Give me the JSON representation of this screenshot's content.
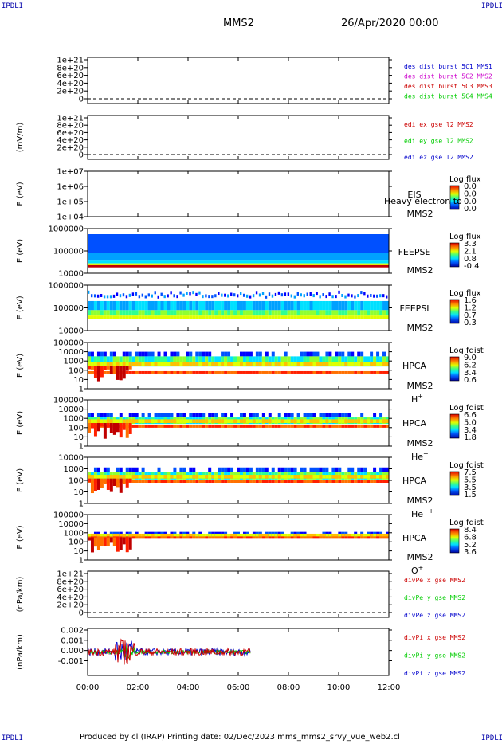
{
  "header": {
    "title": "MMS2",
    "date": "26/Apr/2020 00:00",
    "corner_left_top": "IPDLI",
    "corner_right_top": "IPDLI",
    "corner_left_bottom": "IPDLI",
    "corner_right_bottom": "IPDLI"
  },
  "footer": {
    "text": "Produced by cl (IRAP)    Printing date: 02/Dec/2023    mms_mms2_srvy_vue_web2.cl"
  },
  "colors": {
    "mms1": "#0000cc",
    "mms2": "#cc00cc",
    "mms3": "#cc0000",
    "mms4": "#00cc00",
    "x_comp": "#cc0000",
    "y_comp": "#00cc00",
    "z_comp": "#0000cc"
  },
  "chart_data": {
    "type": "stacked-timeseries",
    "x_tick_labels": [
      "00:00",
      "02:00",
      "04:00",
      "06:00",
      "08:00",
      "10:00",
      "12:00"
    ],
    "x_range_hours": [
      0,
      12
    ],
    "panels": [
      {
        "id": "des-dist",
        "type": "line",
        "ylabel": "",
        "y_ticks": [
          "1e+21",
          "8e+20",
          "6e+20",
          "4e+20",
          "2e+20",
          "0"
        ],
        "legend": [
          {
            "label": "des dist burst 5C1 MMS1",
            "color": "#0000cc"
          },
          {
            "label": "des dist burst 5C2 MMS2",
            "color": "#cc00cc"
          },
          {
            "label": "des dist burst 5C3 MMS3",
            "color": "#cc0000"
          },
          {
            "label": "des dist burst 5C4 MMS4",
            "color": "#00cc00"
          }
        ]
      },
      {
        "id": "edi",
        "type": "line",
        "ylabel": "(mV/m)",
        "y_ticks": [
          "1e+21",
          "8e+20",
          "6e+20",
          "4e+20",
          "2e+20",
          "0"
        ],
        "legend": [
          {
            "label": "edi ex gse l2 MMS2",
            "color": "#cc0000"
          },
          {
            "label": "edi ey gse l2 MMS2",
            "color": "#00cc00"
          },
          {
            "label": "edi ez gse l2 MMS2",
            "color": "#0000cc"
          }
        ]
      },
      {
        "id": "eis",
        "type": "heatmap",
        "ylabel": "E (eV)",
        "y_ticks": [
          "1e+07",
          "1e+06",
          "1e+05",
          "1e+04"
        ],
        "instrument": "EIS",
        "instrument_overlay": "Heavy electron to",
        "spacecraft": "MMS2",
        "colorbar_title": "Log flux",
        "colorbar_values": [
          "0.0",
          "0.0",
          "0.0",
          "0.0"
        ],
        "data": "empty"
      },
      {
        "id": "feepse",
        "type": "heatmap",
        "ylabel": "E (eV)",
        "y_ticks": [
          "1000000",
          "100000",
          "10000"
        ],
        "instrument": "FEEPSE",
        "spacecraft": "MMS2",
        "colorbar_title": "Log flux",
        "colorbar_values": [
          "3.3",
          "2.1",
          "0.8",
          "-0.4"
        ],
        "coverage_hours": [
          0,
          12
        ]
      },
      {
        "id": "feepsi",
        "type": "heatmap",
        "ylabel": "E (eV)",
        "y_ticks": [
          "1000000",
          "100000",
          "10000"
        ],
        "instrument": "FEEPSI",
        "spacecraft": "MMS2",
        "colorbar_title": "Log flux",
        "colorbar_values": [
          "1.6",
          "1.2",
          "0.7",
          "0.3"
        ],
        "coverage_hours": [
          0,
          12
        ]
      },
      {
        "id": "hpca-h",
        "type": "heatmap",
        "ylabel": "E (eV)",
        "y_ticks": [
          "100000",
          "10000",
          "1000",
          "100",
          "10",
          "1"
        ],
        "instrument": "HPCA",
        "spacecraft": "MMS2",
        "species": "H",
        "species_charge": "+",
        "colorbar_title": "Log fdist",
        "colorbar_values": [
          "9.0",
          "6.2",
          "3.4",
          "0.6"
        ],
        "coverage_hours": [
          0,
          12
        ]
      },
      {
        "id": "hpca-he",
        "type": "heatmap",
        "ylabel": "E (eV)",
        "y_ticks": [
          "100000",
          "10000",
          "1000",
          "100",
          "10",
          "1"
        ],
        "instrument": "HPCA",
        "spacecraft": "MMS2",
        "species": "He",
        "species_charge": "+",
        "colorbar_title": "Log fdist",
        "colorbar_values": [
          "6.6",
          "5.0",
          "3.4",
          "1.8"
        ],
        "coverage_hours": [
          0,
          12
        ]
      },
      {
        "id": "hpca-hepp",
        "type": "heatmap",
        "ylabel": "E (eV)",
        "y_ticks": [
          "10000",
          "1000",
          "100",
          "10",
          "1"
        ],
        "instrument": "HPCA",
        "spacecraft": "MMS2",
        "species": "He",
        "species_charge": "++",
        "colorbar_title": "Log fdist",
        "colorbar_values": [
          "7.5",
          "5.5",
          "3.5",
          "1.5"
        ],
        "coverage_hours": [
          0,
          12
        ]
      },
      {
        "id": "hpca-o",
        "type": "heatmap",
        "ylabel": "E (eV)",
        "y_ticks": [
          "100000",
          "10000",
          "1000",
          "100",
          "10",
          "1"
        ],
        "instrument": "HPCA",
        "spacecraft": "MMS2",
        "species": "O",
        "species_charge": "+",
        "colorbar_title": "Log fdist",
        "colorbar_values": [
          "8.4",
          "6.8",
          "5.2",
          "3.6"
        ],
        "coverage_hours": [
          0,
          12
        ]
      },
      {
        "id": "divpe",
        "type": "line",
        "ylabel": "(nPa/km)",
        "y_ticks": [
          "1e+21",
          "8e+20",
          "6e+20",
          "4e+20",
          "2e+20",
          "0"
        ],
        "legend": [
          {
            "label": "divPe x gse MMS2",
            "color": "#cc0000"
          },
          {
            "label": "divPe y gse MMS2",
            "color": "#00cc00"
          },
          {
            "label": "divPe z gse MMS2",
            "color": "#0000cc"
          }
        ]
      },
      {
        "id": "divpi",
        "type": "line",
        "ylabel": "(nPa/km)",
        "y_ticks": [
          "0.002",
          "0.001",
          "0.000",
          "-0.001"
        ],
        "y_range": [
          -0.002,
          0.002
        ],
        "coverage_hours": [
          0,
          6.5
        ],
        "legend": [
          {
            "label": "divPi x gse MMS2",
            "color": "#cc0000"
          },
          {
            "label": "divPi y gse MMS2",
            "color": "#00cc00"
          },
          {
            "label": "divPi z gse MMS2",
            "color": "#0000cc"
          }
        ]
      }
    ]
  }
}
